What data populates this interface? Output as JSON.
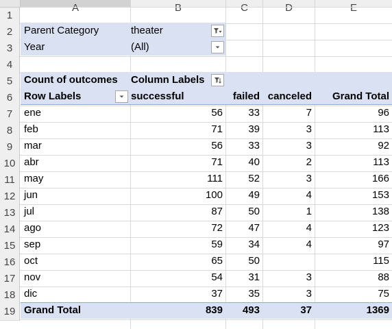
{
  "columns": [
    "A",
    "B",
    "C",
    "D",
    "E"
  ],
  "row_numbers": [
    "1",
    "2",
    "3",
    "4",
    "5",
    "6",
    "7",
    "8",
    "9",
    "10",
    "11",
    "12",
    "13",
    "14",
    "15",
    "16",
    "17",
    "18",
    "19"
  ],
  "filters": [
    {
      "label": "Parent Category",
      "value": "theater",
      "icon": "filter-applied-icon"
    },
    {
      "label": "Year",
      "value": "(All)",
      "icon": "dropdown-arrow-icon"
    }
  ],
  "pivot": {
    "values_label": "Count of outcomes",
    "column_labels": "Column Labels",
    "row_labels": "Row Labels",
    "headers": [
      "successful",
      "failed",
      "canceled",
      "Grand Total"
    ],
    "rows": [
      {
        "label": "ene",
        "values": [
          "56",
          "33",
          "7",
          "96"
        ]
      },
      {
        "label": "feb",
        "values": [
          "71",
          "39",
          "3",
          "113"
        ]
      },
      {
        "label": "mar",
        "values": [
          "56",
          "33",
          "3",
          "92"
        ]
      },
      {
        "label": "abr",
        "values": [
          "71",
          "40",
          "2",
          "113"
        ]
      },
      {
        "label": "may",
        "values": [
          "111",
          "52",
          "3",
          "166"
        ]
      },
      {
        "label": "jun",
        "values": [
          "100",
          "49",
          "4",
          "153"
        ]
      },
      {
        "label": "jul",
        "values": [
          "87",
          "50",
          "1",
          "138"
        ]
      },
      {
        "label": "ago",
        "values": [
          "72",
          "47",
          "4",
          "123"
        ]
      },
      {
        "label": "sep",
        "values": [
          "59",
          "34",
          "4",
          "97"
        ]
      },
      {
        "label": "oct",
        "values": [
          "65",
          "50",
          "",
          "115"
        ]
      },
      {
        "label": "nov",
        "values": [
          "54",
          "31",
          "3",
          "88"
        ]
      },
      {
        "label": "dic",
        "values": [
          "37",
          "35",
          "3",
          "75"
        ]
      }
    ],
    "grand_total": {
      "label": "Grand Total",
      "values": [
        "839",
        "493",
        "37",
        "1369"
      ]
    }
  },
  "colors": {
    "band": "#d9e1f2",
    "band_line": "#8ea9db",
    "grid": "#d9d9d9",
    "header_bg": "#efefef"
  }
}
